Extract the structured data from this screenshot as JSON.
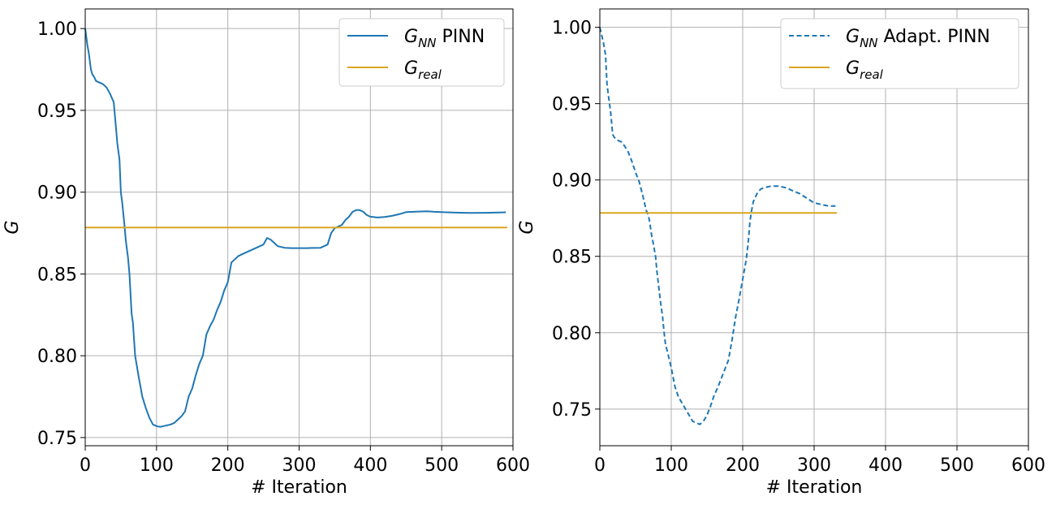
{
  "chart_data": [
    {
      "type": "line",
      "xlabel": "# Iteration",
      "ylabel": "G",
      "xlim": [
        0,
        600
      ],
      "ylim": [
        0.745,
        1.012
      ],
      "xticks": [
        "0",
        "100",
        "200",
        "300",
        "400",
        "500",
        "600"
      ],
      "yticks": [
        "0.75",
        "0.80",
        "0.85",
        "0.90",
        "0.95",
        "1.00"
      ],
      "grid": true,
      "legend_position": "top-right",
      "series": [
        {
          "name": "G_NN PINN",
          "legend_main": "G",
          "legend_sub": "NN",
          "legend_rest": " PINN",
          "color": "#1f77b4",
          "style": "solid",
          "x": [
            0,
            3,
            5,
            8,
            10,
            13,
            15,
            20,
            25,
            30,
            35,
            40,
            43,
            45,
            48,
            50,
            52,
            55,
            57,
            60,
            62,
            65,
            67,
            70,
            72,
            75,
            78,
            80,
            85,
            90,
            95,
            100,
            105,
            110,
            115,
            120,
            125,
            130,
            135,
            140,
            145,
            150,
            155,
            160,
            165,
            170,
            175,
            180,
            185,
            190,
            195,
            200,
            205,
            210,
            215,
            220,
            225,
            230,
            235,
            240,
            245,
            250,
            255,
            260,
            265,
            270,
            275,
            280,
            290,
            300,
            310,
            320,
            330,
            340,
            345,
            350,
            355,
            360,
            365,
            370,
            375,
            380,
            385,
            390,
            395,
            400,
            410,
            420,
            430,
            440,
            450,
            460,
            470,
            480,
            490,
            500,
            520,
            540,
            560,
            580,
            590
          ],
          "y": [
            1.0,
            0.99,
            0.985,
            0.975,
            0.972,
            0.97,
            0.968,
            0.967,
            0.966,
            0.964,
            0.96,
            0.955,
            0.94,
            0.93,
            0.92,
            0.9,
            0.893,
            0.88,
            0.87,
            0.86,
            0.85,
            0.826,
            0.82,
            0.8,
            0.795,
            0.787,
            0.78,
            0.775,
            0.768,
            0.762,
            0.758,
            0.757,
            0.7565,
            0.757,
            0.7575,
            0.758,
            0.759,
            0.761,
            0.763,
            0.766,
            0.775,
            0.78,
            0.788,
            0.795,
            0.8,
            0.813,
            0.818,
            0.822,
            0.828,
            0.833,
            0.84,
            0.845,
            0.857,
            0.859,
            0.861,
            0.862,
            0.863,
            0.864,
            0.865,
            0.866,
            0.867,
            0.868,
            0.872,
            0.871,
            0.869,
            0.867,
            0.8665,
            0.866,
            0.8658,
            0.8658,
            0.8658,
            0.8659,
            0.866,
            0.868,
            0.875,
            0.878,
            0.879,
            0.88,
            0.883,
            0.885,
            0.888,
            0.889,
            0.889,
            0.888,
            0.886,
            0.885,
            0.8845,
            0.8848,
            0.8855,
            0.8865,
            0.8878,
            0.888,
            0.8882,
            0.8883,
            0.888,
            0.8878,
            0.8875,
            0.8873,
            0.8874,
            0.8876,
            0.8877
          ]
        },
        {
          "name": "G_real",
          "legend_main": "G",
          "legend_sub": "real",
          "legend_rest": "",
          "color": "#daa520",
          "style": "solid",
          "x": [
            0,
            592
          ],
          "y": [
            0.8784,
            0.8784
          ]
        }
      ]
    },
    {
      "type": "line",
      "xlabel": "# Iteration",
      "ylabel": "G",
      "xlim": [
        0,
        600
      ],
      "ylim": [
        0.726,
        1.012
      ],
      "xticks": [
        "0",
        "100",
        "200",
        "300",
        "400",
        "500",
        "600"
      ],
      "yticks": [
        "0.75",
        "0.80",
        "0.85",
        "0.90",
        "0.95",
        "1.00"
      ],
      "grid": true,
      "legend_position": "top-right",
      "series": [
        {
          "name": "G_NN Adapt. PINN",
          "legend_main": "G",
          "legend_sub": "NN",
          "legend_rest": " Adapt. PINN",
          "color": "#1f77b4",
          "style": "dashed",
          "x": [
            0,
            5,
            8,
            10,
            12,
            15,
            18,
            20,
            25,
            30,
            35,
            40,
            45,
            50,
            55,
            60,
            65,
            68,
            70,
            72,
            75,
            78,
            80,
            83,
            85,
            88,
            90,
            92,
            95,
            98,
            100,
            105,
            110,
            115,
            120,
            125,
            130,
            135,
            140,
            145,
            150,
            155,
            160,
            165,
            170,
            175,
            180,
            185,
            190,
            195,
            200,
            205,
            208,
            210,
            212,
            215,
            220,
            225,
            230,
            240,
            250,
            260,
            270,
            280,
            290,
            300,
            310,
            320,
            330
          ],
          "y": [
            1.0,
            0.99,
            0.982,
            0.963,
            0.955,
            0.945,
            0.93,
            0.928,
            0.926,
            0.925,
            0.922,
            0.918,
            0.912,
            0.905,
            0.899,
            0.89,
            0.88,
            0.877,
            0.872,
            0.865,
            0.858,
            0.85,
            0.84,
            0.828,
            0.82,
            0.81,
            0.8,
            0.792,
            0.787,
            0.781,
            0.777,
            0.765,
            0.758,
            0.754,
            0.75,
            0.746,
            0.742,
            0.741,
            0.74,
            0.742,
            0.746,
            0.752,
            0.759,
            0.764,
            0.77,
            0.776,
            0.782,
            0.795,
            0.81,
            0.822,
            0.835,
            0.848,
            0.86,
            0.872,
            0.879,
            0.886,
            0.891,
            0.894,
            0.895,
            0.896,
            0.896,
            0.895,
            0.893,
            0.891,
            0.888,
            0.885,
            0.884,
            0.883,
            0.883
          ]
        },
        {
          "name": "G_real",
          "legend_main": "G",
          "legend_sub": "real",
          "legend_rest": "",
          "color": "#daa520",
          "style": "solid",
          "x": [
            0,
            332
          ],
          "y": [
            0.8784,
            0.8784
          ]
        }
      ]
    }
  ]
}
